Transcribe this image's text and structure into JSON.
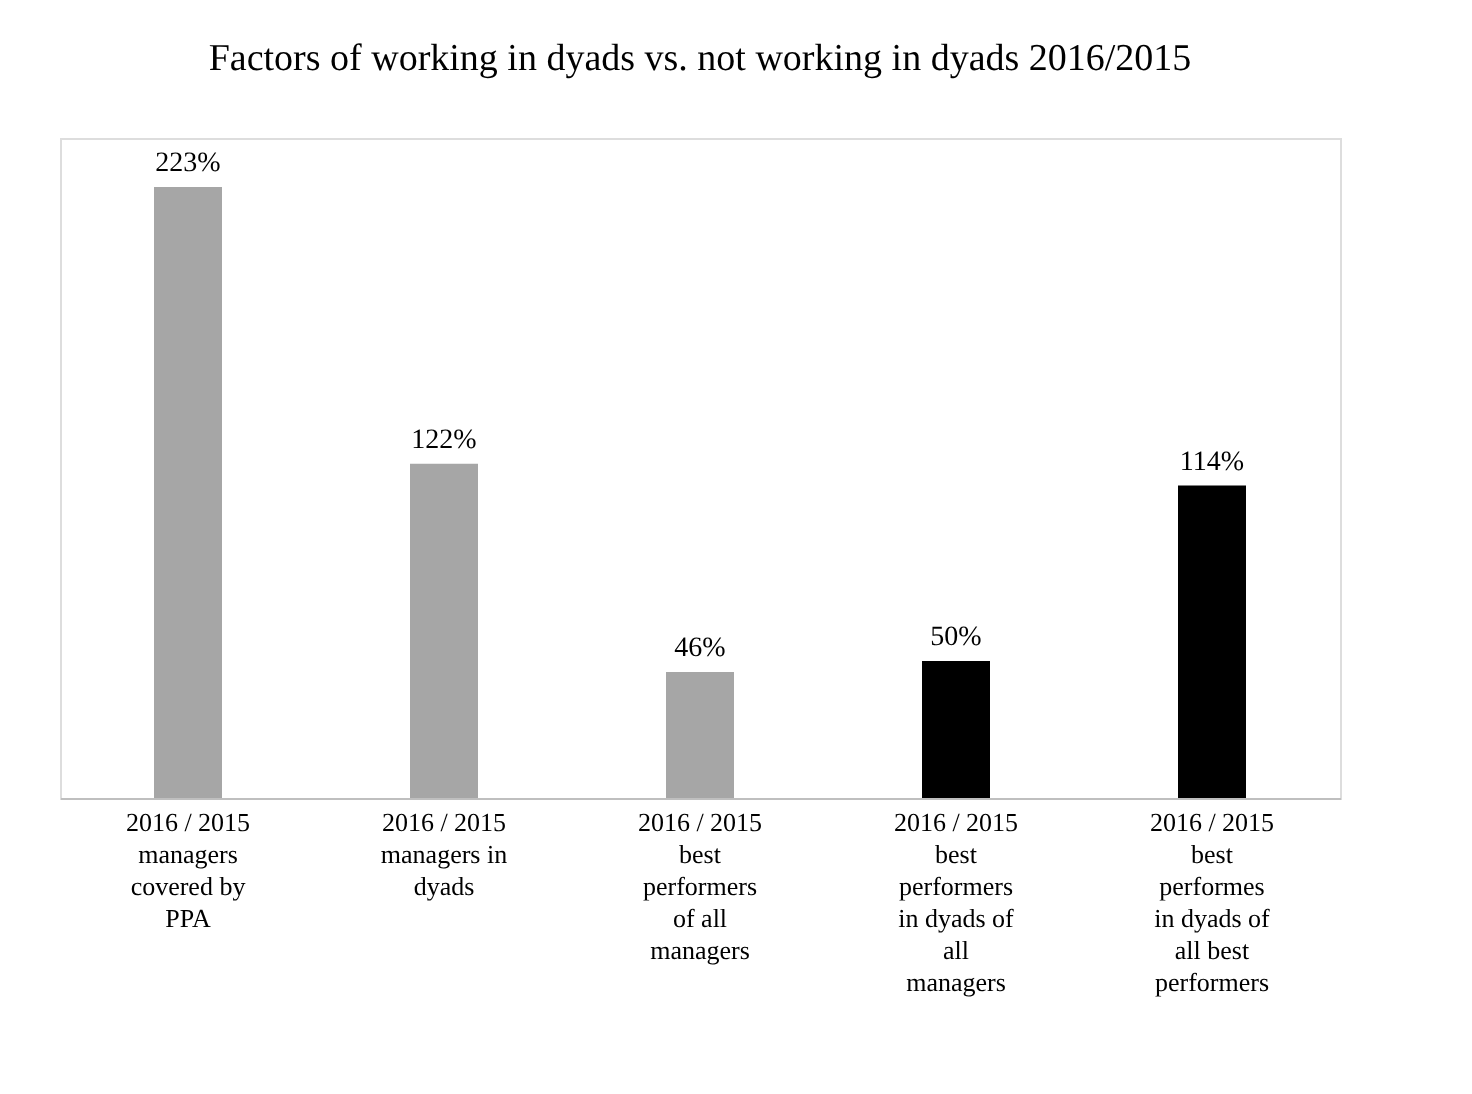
{
  "chart_data": {
    "type": "bar",
    "title": "Factors of working in dyads vs. not working in dyads 2016/2015",
    "categories": [
      "2016 / 2015\nmanagers\ncovered by\nPPA",
      "2016 / 2015\nmanagers in\ndyads",
      "2016 / 2015\nbest\nperformers\nof all\nmanagers",
      "2016 / 2015\nbest\nperformers\nin dyads of\nall\nmanagers",
      "2016 / 2015\nbest\nperformes\nin dyads of\nall best\nperformers"
    ],
    "values": [
      223,
      122,
      46,
      50,
      114
    ],
    "value_labels": [
      "223%",
      "122%",
      "46%",
      "50%",
      "114%"
    ],
    "colors": [
      "#a6a6a6",
      "#a6a6a6",
      "#a6a6a6",
      "#000000",
      "#000000"
    ],
    "grid": false,
    "legend": false
  }
}
